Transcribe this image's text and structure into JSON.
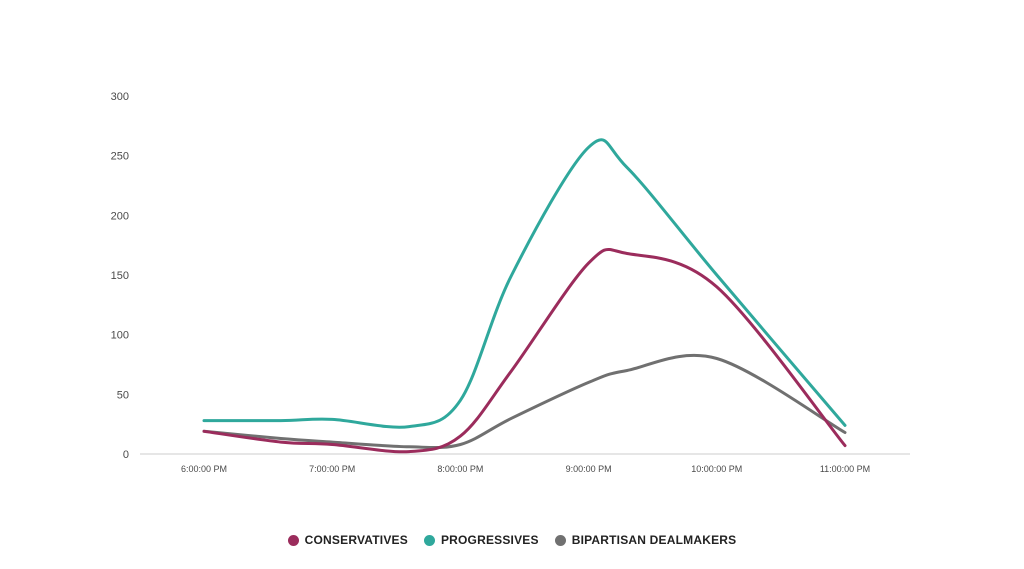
{
  "chart_data": {
    "type": "line",
    "title": "",
    "xlabel": "",
    "ylabel": "",
    "categories": [
      "6:00:00 PM",
      "7:00:00 PM",
      "8:00:00 PM",
      "9:00:00 PM",
      "10:00:00 PM",
      "11:00:00 PM"
    ],
    "x": [
      0,
      0.6,
      1,
      1.6,
      2,
      2.4,
      3,
      3.3,
      4,
      5
    ],
    "ylim": [
      0,
      300
    ],
    "yticks": [
      0,
      50,
      100,
      150,
      200,
      250,
      300
    ],
    "grid": false,
    "legend_position": "bottom",
    "series": [
      {
        "name": "CONSERVATIVES",
        "color": "#9b2c5c",
        "values": [
          19,
          10,
          8,
          2,
          15,
          70,
          160,
          168,
          140,
          7
        ]
      },
      {
        "name": "PROGRESSIVES",
        "color": "#2fa89c",
        "values": [
          28,
          28,
          29,
          23,
          45,
          150,
          257,
          240,
          150,
          24
        ]
      },
      {
        "name": "BIPARTISAN DEALMAKERS",
        "color": "#707070",
        "values": [
          19,
          13,
          10,
          6,
          8,
          30,
          60,
          70,
          80,
          18
        ]
      }
    ]
  }
}
